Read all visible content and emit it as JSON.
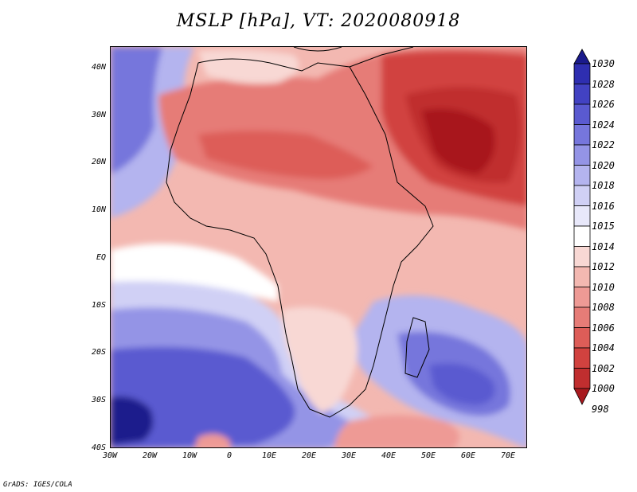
{
  "title": "MSLP [hPa], VT: 2020080918",
  "credit": "GrADS: IGES/COLA",
  "lat_ticks": [
    "40N",
    "30N",
    "20N",
    "10N",
    "EQ",
    "10S",
    "20S",
    "30S",
    "40S"
  ],
  "lon_ticks": [
    "30W",
    "20W",
    "10W",
    "0",
    "10E",
    "20E",
    "30E",
    "40E",
    "50E",
    "60E",
    "70E"
  ],
  "colorbar": {
    "levels": [
      "998",
      "1000",
      "1002",
      "1004",
      "1006",
      "1008",
      "1010",
      "1012",
      "1014",
      "1015",
      "1016",
      "1018",
      "1020",
      "1022",
      "1024",
      "1026",
      "1028",
      "1030"
    ],
    "colors": [
      "#a8191e",
      "#c02e2f",
      "#d1423f",
      "#dd5d58",
      "#e67c77",
      "#ee9a95",
      "#f3b8b1",
      "#f8d8d4",
      "#ffffff",
      "#e8e8fa",
      "#d0d0f5",
      "#b4b4ef",
      "#9494e6",
      "#7676dc",
      "#5a5ad0",
      "#4242c2",
      "#2e2eb0",
      "#1a1a8c"
    ]
  }
}
